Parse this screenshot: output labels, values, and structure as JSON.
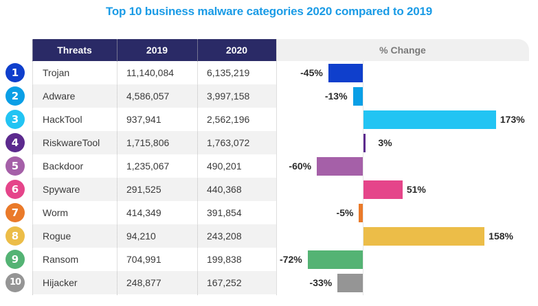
{
  "chart_data": {
    "type": "table",
    "title": "Top 10 business malware categories 2020 compared to 2019",
    "columns": [
      "Threats",
      "2019",
      "2020",
      "% Change"
    ],
    "rows": [
      {
        "rank": "1",
        "threat": "Trojan",
        "y2019": "11,140,084",
        "y2020": "6,135,219",
        "change": -45,
        "change_label": "-45%",
        "color": "#0f3fcc"
      },
      {
        "rank": "2",
        "threat": "Adware",
        "y2019": "4,586,057",
        "y2020": "3,997,158",
        "change": -13,
        "change_label": "-13%",
        "color": "#0a9fe6"
      },
      {
        "rank": "3",
        "threat": "HackTool",
        "y2019": "937,941",
        "y2020": "2,562,196",
        "change": 173,
        "change_label": "173%",
        "color": "#22c4f3"
      },
      {
        "rank": "4",
        "threat": "RiskwareTool",
        "y2019": "1,715,806",
        "y2020": "1,763,072",
        "change": 3,
        "change_label": "3%",
        "color": "#5c2a8e"
      },
      {
        "rank": "5",
        "threat": "Backdoor",
        "y2019": "1,235,067",
        "y2020": "490,201",
        "change": -60,
        "change_label": "-60%",
        "color": "#a560a8"
      },
      {
        "rank": "6",
        "threat": "Spyware",
        "y2019": "291,525",
        "y2020": "440,368",
        "change": 51,
        "change_label": "51%",
        "color": "#e5458a"
      },
      {
        "rank": "7",
        "threat": "Worm",
        "y2019": "414,349",
        "y2020": "391,854",
        "change": -5,
        "change_label": "-5%",
        "color": "#ea7a2a"
      },
      {
        "rank": "8",
        "threat": "Rogue",
        "y2019": "94,210",
        "y2020": "243,208",
        "change": 158,
        "change_label": "158%",
        "color": "#ecbd48"
      },
      {
        "rank": "9",
        "threat": "Ransom",
        "y2019": "704,991",
        "y2020": "199,838",
        "change": -72,
        "change_label": "-72%",
        "color": "#54b374"
      },
      {
        "rank": "10",
        "threat": "Hijacker",
        "y2019": "248,877",
        "y2020": "167,252",
        "change": -33,
        "change_label": "-33%",
        "color": "#959595"
      }
    ],
    "xlabel": "% Change",
    "grid": false
  },
  "colors": {
    "title": "#1a9be6",
    "header_bg": "#2a2a66",
    "change_header_bg": "#f0f0f0"
  }
}
